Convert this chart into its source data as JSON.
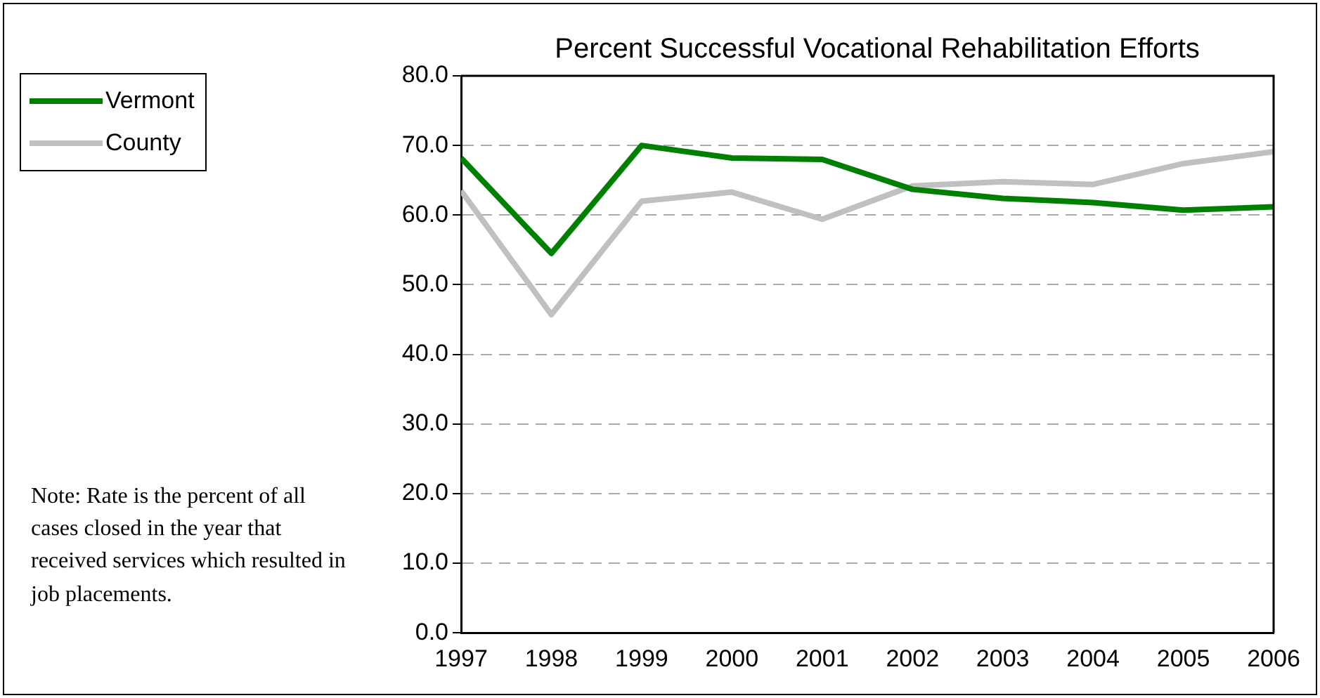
{
  "chart_data": {
    "type": "line",
    "title": "Percent Successful Vocational Rehabilitation Efforts",
    "x": [
      1997,
      1998,
      1999,
      2000,
      2001,
      2002,
      2003,
      2004,
      2005,
      2006
    ],
    "series": [
      {
        "name": "Vermont",
        "color": "#008000",
        "values": [
          68.2,
          54.5,
          70.0,
          68.2,
          68.0,
          63.7,
          62.4,
          61.8,
          60.7,
          61.2
        ]
      },
      {
        "name": "County",
        "color": "#c0c0c0",
        "values": [
          63.5,
          45.7,
          62.0,
          63.3,
          59.4,
          64.2,
          64.8,
          64.4,
          67.4,
          69.1
        ]
      }
    ],
    "xlim": [
      1997,
      2006
    ],
    "xticks": [
      1997,
      1998,
      1999,
      2000,
      2001,
      2002,
      2003,
      2004,
      2005,
      2006
    ],
    "ylim": [
      0,
      80
    ],
    "yticks": [
      {
        "value": 0,
        "label": "0.0"
      },
      {
        "value": 10,
        "label": "10.0"
      },
      {
        "value": 20,
        "label": "20.0"
      },
      {
        "value": 30,
        "label": "30.0"
      },
      {
        "value": 40,
        "label": "40.0"
      },
      {
        "value": 50,
        "label": "50.0"
      },
      {
        "value": 60,
        "label": "60.0"
      },
      {
        "value": 70,
        "label": "70.0"
      },
      {
        "value": 80,
        "label": "80.0"
      }
    ],
    "grid": "y",
    "legend": "top left",
    "marker": "none",
    "line_style": "solid",
    "annotations": [
      "Note: Rate is the percent of all cases closed in the year that received services which resulted in job placements."
    ]
  }
}
